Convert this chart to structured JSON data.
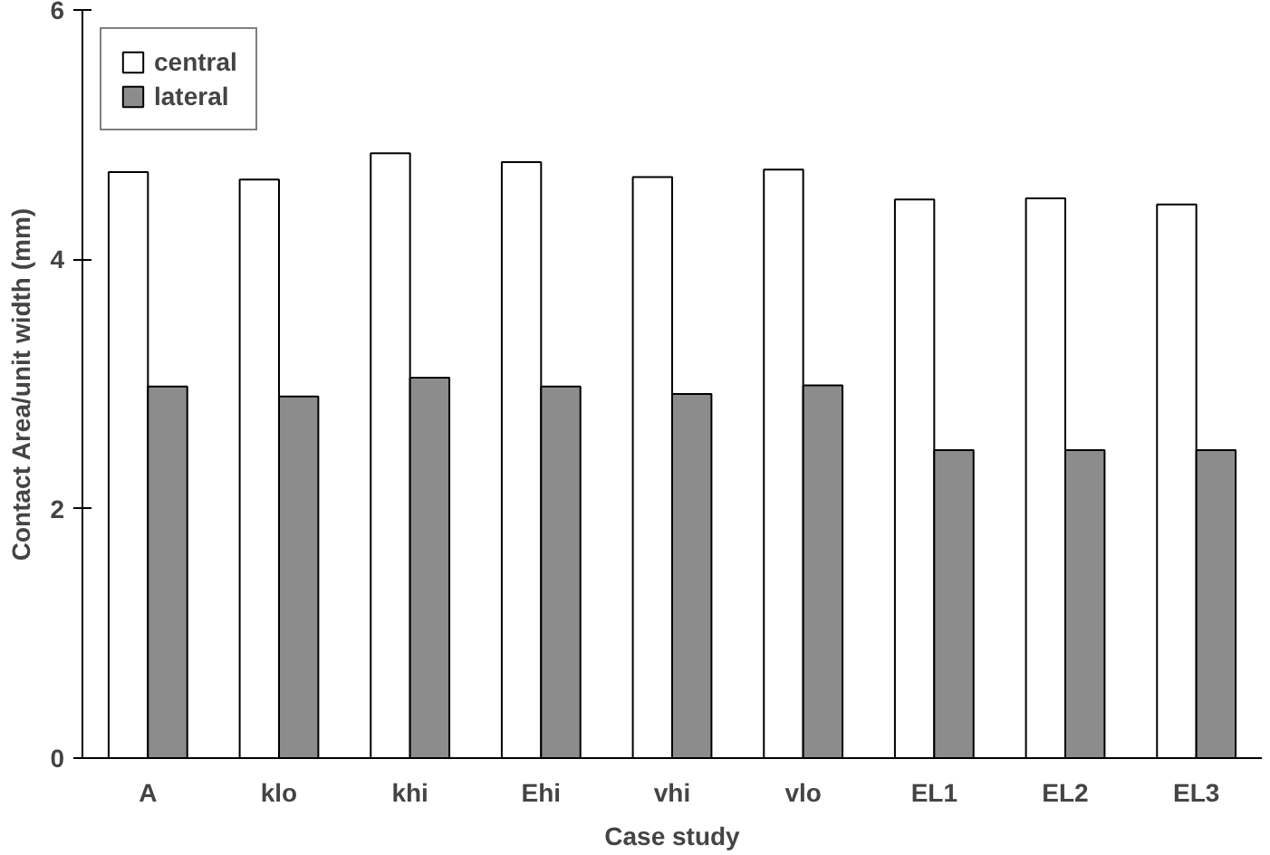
{
  "chart_data": {
    "type": "bar",
    "xlabel": "Case study",
    "ylabel": "Contact Area/unit width (mm)",
    "categories": [
      "A",
      "klo",
      "khi",
      "Ehi",
      "vhi",
      "vlo",
      "EL1",
      "EL2",
      "EL3"
    ],
    "series": [
      {
        "name": "central",
        "color": "#ffffff",
        "values": [
          4.7,
          4.64,
          4.85,
          4.78,
          4.66,
          4.72,
          4.48,
          4.49,
          4.44
        ]
      },
      {
        "name": "lateral",
        "color": "#8c8c8c",
        "values": [
          2.98,
          2.9,
          3.05,
          2.98,
          2.92,
          2.99,
          2.47,
          2.47,
          2.47
        ]
      }
    ],
    "ylim": [
      0,
      6
    ],
    "yticks": [
      0,
      2,
      4,
      6
    ],
    "grid": false,
    "legend": "top left"
  }
}
